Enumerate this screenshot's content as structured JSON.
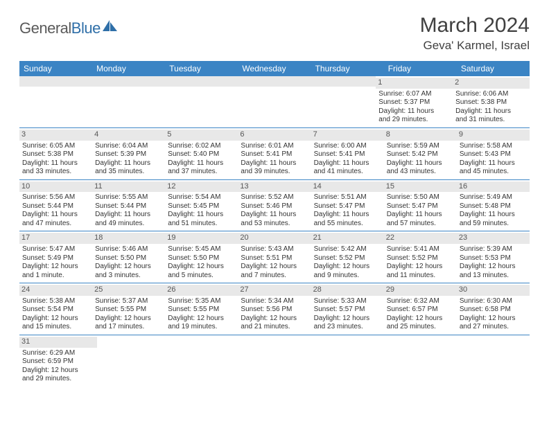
{
  "logo": {
    "part1": "General",
    "part2": "Blue"
  },
  "title": "March 2024",
  "location": "Geva' Karmel, Israel",
  "colors": {
    "header_bg": "#3b84c4",
    "header_text": "#ffffff",
    "daynum_bg": "#e8e8e8",
    "text": "#333333",
    "row_border": "#3b84c4"
  },
  "weekdays": [
    "Sunday",
    "Monday",
    "Tuesday",
    "Wednesday",
    "Thursday",
    "Friday",
    "Saturday"
  ],
  "weeks": [
    [
      null,
      null,
      null,
      null,
      null,
      {
        "n": "1",
        "sr": "Sunrise: 6:07 AM",
        "ss": "Sunset: 5:37 PM",
        "d1": "Daylight: 11 hours",
        "d2": "and 29 minutes."
      },
      {
        "n": "2",
        "sr": "Sunrise: 6:06 AM",
        "ss": "Sunset: 5:38 PM",
        "d1": "Daylight: 11 hours",
        "d2": "and 31 minutes."
      }
    ],
    [
      {
        "n": "3",
        "sr": "Sunrise: 6:05 AM",
        "ss": "Sunset: 5:38 PM",
        "d1": "Daylight: 11 hours",
        "d2": "and 33 minutes."
      },
      {
        "n": "4",
        "sr": "Sunrise: 6:04 AM",
        "ss": "Sunset: 5:39 PM",
        "d1": "Daylight: 11 hours",
        "d2": "and 35 minutes."
      },
      {
        "n": "5",
        "sr": "Sunrise: 6:02 AM",
        "ss": "Sunset: 5:40 PM",
        "d1": "Daylight: 11 hours",
        "d2": "and 37 minutes."
      },
      {
        "n": "6",
        "sr": "Sunrise: 6:01 AM",
        "ss": "Sunset: 5:41 PM",
        "d1": "Daylight: 11 hours",
        "d2": "and 39 minutes."
      },
      {
        "n": "7",
        "sr": "Sunrise: 6:00 AM",
        "ss": "Sunset: 5:41 PM",
        "d1": "Daylight: 11 hours",
        "d2": "and 41 minutes."
      },
      {
        "n": "8",
        "sr": "Sunrise: 5:59 AM",
        "ss": "Sunset: 5:42 PM",
        "d1": "Daylight: 11 hours",
        "d2": "and 43 minutes."
      },
      {
        "n": "9",
        "sr": "Sunrise: 5:58 AM",
        "ss": "Sunset: 5:43 PM",
        "d1": "Daylight: 11 hours",
        "d2": "and 45 minutes."
      }
    ],
    [
      {
        "n": "10",
        "sr": "Sunrise: 5:56 AM",
        "ss": "Sunset: 5:44 PM",
        "d1": "Daylight: 11 hours",
        "d2": "and 47 minutes."
      },
      {
        "n": "11",
        "sr": "Sunrise: 5:55 AM",
        "ss": "Sunset: 5:44 PM",
        "d1": "Daylight: 11 hours",
        "d2": "and 49 minutes."
      },
      {
        "n": "12",
        "sr": "Sunrise: 5:54 AM",
        "ss": "Sunset: 5:45 PM",
        "d1": "Daylight: 11 hours",
        "d2": "and 51 minutes."
      },
      {
        "n": "13",
        "sr": "Sunrise: 5:52 AM",
        "ss": "Sunset: 5:46 PM",
        "d1": "Daylight: 11 hours",
        "d2": "and 53 minutes."
      },
      {
        "n": "14",
        "sr": "Sunrise: 5:51 AM",
        "ss": "Sunset: 5:47 PM",
        "d1": "Daylight: 11 hours",
        "d2": "and 55 minutes."
      },
      {
        "n": "15",
        "sr": "Sunrise: 5:50 AM",
        "ss": "Sunset: 5:47 PM",
        "d1": "Daylight: 11 hours",
        "d2": "and 57 minutes."
      },
      {
        "n": "16",
        "sr": "Sunrise: 5:49 AM",
        "ss": "Sunset: 5:48 PM",
        "d1": "Daylight: 11 hours",
        "d2": "and 59 minutes."
      }
    ],
    [
      {
        "n": "17",
        "sr": "Sunrise: 5:47 AM",
        "ss": "Sunset: 5:49 PM",
        "d1": "Daylight: 12 hours",
        "d2": "and 1 minute."
      },
      {
        "n": "18",
        "sr": "Sunrise: 5:46 AM",
        "ss": "Sunset: 5:50 PM",
        "d1": "Daylight: 12 hours",
        "d2": "and 3 minutes."
      },
      {
        "n": "19",
        "sr": "Sunrise: 5:45 AM",
        "ss": "Sunset: 5:50 PM",
        "d1": "Daylight: 12 hours",
        "d2": "and 5 minutes."
      },
      {
        "n": "20",
        "sr": "Sunrise: 5:43 AM",
        "ss": "Sunset: 5:51 PM",
        "d1": "Daylight: 12 hours",
        "d2": "and 7 minutes."
      },
      {
        "n": "21",
        "sr": "Sunrise: 5:42 AM",
        "ss": "Sunset: 5:52 PM",
        "d1": "Daylight: 12 hours",
        "d2": "and 9 minutes."
      },
      {
        "n": "22",
        "sr": "Sunrise: 5:41 AM",
        "ss": "Sunset: 5:52 PM",
        "d1": "Daylight: 12 hours",
        "d2": "and 11 minutes."
      },
      {
        "n": "23",
        "sr": "Sunrise: 5:39 AM",
        "ss": "Sunset: 5:53 PM",
        "d1": "Daylight: 12 hours",
        "d2": "and 13 minutes."
      }
    ],
    [
      {
        "n": "24",
        "sr": "Sunrise: 5:38 AM",
        "ss": "Sunset: 5:54 PM",
        "d1": "Daylight: 12 hours",
        "d2": "and 15 minutes."
      },
      {
        "n": "25",
        "sr": "Sunrise: 5:37 AM",
        "ss": "Sunset: 5:55 PM",
        "d1": "Daylight: 12 hours",
        "d2": "and 17 minutes."
      },
      {
        "n": "26",
        "sr": "Sunrise: 5:35 AM",
        "ss": "Sunset: 5:55 PM",
        "d1": "Daylight: 12 hours",
        "d2": "and 19 minutes."
      },
      {
        "n": "27",
        "sr": "Sunrise: 5:34 AM",
        "ss": "Sunset: 5:56 PM",
        "d1": "Daylight: 12 hours",
        "d2": "and 21 minutes."
      },
      {
        "n": "28",
        "sr": "Sunrise: 5:33 AM",
        "ss": "Sunset: 5:57 PM",
        "d1": "Daylight: 12 hours",
        "d2": "and 23 minutes."
      },
      {
        "n": "29",
        "sr": "Sunrise: 6:32 AM",
        "ss": "Sunset: 6:57 PM",
        "d1": "Daylight: 12 hours",
        "d2": "and 25 minutes."
      },
      {
        "n": "30",
        "sr": "Sunrise: 6:30 AM",
        "ss": "Sunset: 6:58 PM",
        "d1": "Daylight: 12 hours",
        "d2": "and 27 minutes."
      }
    ],
    [
      {
        "n": "31",
        "sr": "Sunrise: 6:29 AM",
        "ss": "Sunset: 6:59 PM",
        "d1": "Daylight: 12 hours",
        "d2": "and 29 minutes."
      },
      null,
      null,
      null,
      null,
      null,
      null
    ]
  ]
}
